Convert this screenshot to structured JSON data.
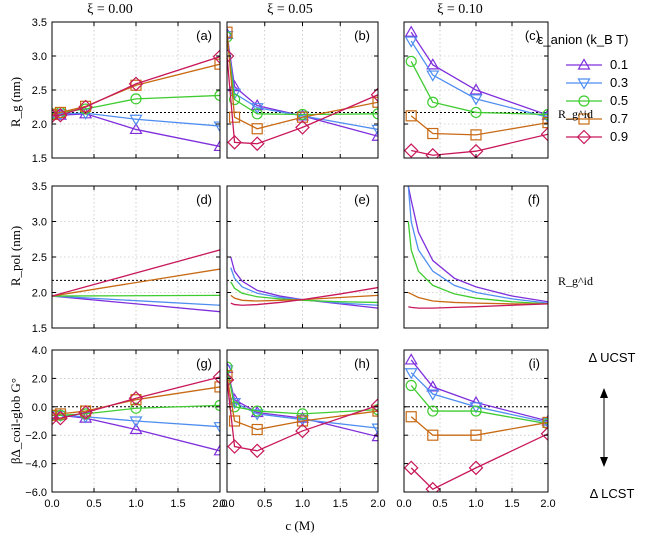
{
  "figure": {
    "xi_titles": [
      "ξ = 0.00",
      "ξ = 0.05",
      "ξ = 0.10"
    ],
    "xlabel": "c (M)",
    "row_labels": [
      "R_g (nm)",
      "R_pol (nm)",
      "βΔ_coil-glob G°"
    ],
    "panel_labels": [
      "(a)",
      "(b)",
      "(c)",
      "(d)",
      "(e)",
      "(f)",
      "(g)",
      "(h)",
      "(i)"
    ],
    "legend_title": "ε_anion (k_B T)",
    "legend_entries": [
      "0.1",
      "0.3",
      "0.5",
      "0.7",
      "0.9"
    ],
    "ref_label_top": "R_g^id",
    "ref_label_mid": "R_g^id",
    "arrow_top": "Δ UCST",
    "arrow_bottom": "Δ LCST",
    "x_ticks": [
      "0.0",
      "0.5",
      "1.0",
      "1.5",
      "2.0"
    ],
    "y_ticks_rows": [
      [
        "1.5",
        "2.0",
        "2.5",
        "3.0",
        "3.5"
      ],
      [
        "1.5",
        "2.0",
        "2.5",
        "3.0",
        "3.5"
      ],
      [
        "−6.0",
        "−4.0",
        "−2.0",
        "0.0",
        "2.0",
        "4.0"
      ]
    ],
    "series_colors": [
      "#7f2fdc",
      "#4f8ef0",
      "#3fcc30",
      "#c86a14",
      "#c8185a"
    ],
    "marker_shapes": [
      "triangle-up",
      "triangle-down",
      "circle",
      "square",
      "diamond"
    ]
  },
  "chart_data": [
    {
      "panel": "a",
      "type": "line",
      "xlim": [
        0,
        2
      ],
      "ylim": [
        1.5,
        3.5
      ],
      "ref_y": 2.17,
      "x": [
        0.0,
        0.1,
        0.4,
        1.0,
        2.0
      ],
      "series": [
        {
          "name": "0.1",
          "values": [
            2.15,
            2.13,
            2.15,
            1.92,
            1.67
          ]
        },
        {
          "name": "0.3",
          "values": [
            2.15,
            2.15,
            2.16,
            2.07,
            1.97
          ]
        },
        {
          "name": "0.5",
          "values": [
            2.15,
            2.17,
            2.22,
            2.37,
            2.42
          ]
        },
        {
          "name": "0.7",
          "values": [
            2.14,
            2.17,
            2.26,
            2.57,
            2.88
          ]
        },
        {
          "name": "0.9",
          "values": [
            2.12,
            2.13,
            2.25,
            2.59,
            2.99
          ]
        }
      ]
    },
    {
      "panel": "b",
      "type": "line",
      "xlim": [
        0,
        2
      ],
      "ylim": [
        1.5,
        3.5
      ],
      "ref_y": 2.17,
      "x": [
        0.0,
        0.1,
        0.4,
        1.0,
        2.0
      ],
      "series": [
        {
          "name": "0.1",
          "values": [
            3.32,
            2.55,
            2.27,
            2.12,
            1.82
          ]
        },
        {
          "name": "0.3",
          "values": [
            3.3,
            2.45,
            2.24,
            2.12,
            1.92
          ]
        },
        {
          "name": "0.5",
          "values": [
            3.28,
            2.36,
            2.15,
            2.14,
            2.15
          ]
        },
        {
          "name": "0.7",
          "values": [
            3.35,
            2.1,
            1.93,
            2.1,
            2.32
          ]
        },
        {
          "name": "0.9",
          "values": [
            3.0,
            1.73,
            1.71,
            1.95,
            2.43
          ]
        }
      ]
    },
    {
      "panel": "c",
      "type": "line",
      "xlim": [
        0,
        2
      ],
      "ylim": [
        1.5,
        3.5
      ],
      "ref_y": 2.17,
      "x": [
        0.1,
        0.4,
        1.0,
        2.0
      ],
      "series": [
        {
          "name": "0.1",
          "values": [
            3.35,
            2.87,
            2.5,
            2.13
          ]
        },
        {
          "name": "0.3",
          "values": [
            3.22,
            2.72,
            2.37,
            2.1
          ]
        },
        {
          "name": "0.5",
          "values": [
            2.92,
            2.32,
            2.17,
            2.14
          ]
        },
        {
          "name": "0.7",
          "values": [
            2.12,
            1.86,
            1.84,
            2.02
          ]
        },
        {
          "name": "0.9",
          "values": [
            1.61,
            1.54,
            1.6,
            1.85
          ]
        }
      ]
    },
    {
      "panel": "d",
      "type": "line",
      "xlim": [
        0,
        2
      ],
      "ylim": [
        1.5,
        3.5
      ],
      "ref_y": 2.17,
      "x": [
        0.0,
        2.0
      ],
      "series": [
        {
          "name": "0.1",
          "values": [
            1.95,
            1.73
          ]
        },
        {
          "name": "0.3",
          "values": [
            1.95,
            1.82
          ]
        },
        {
          "name": "0.5",
          "values": [
            1.95,
            1.96
          ]
        },
        {
          "name": "0.7",
          "values": [
            1.95,
            2.33
          ]
        },
        {
          "name": "0.9",
          "values": [
            1.95,
            2.6
          ]
        }
      ]
    },
    {
      "panel": "e",
      "type": "line",
      "xlim": [
        0,
        2
      ],
      "ylim": [
        1.5,
        3.5
      ],
      "ref_y": 2.17,
      "x": [
        0.05,
        0.1,
        0.2,
        0.4,
        0.7,
        1.0,
        1.5,
        2.0
      ],
      "series": [
        {
          "name": "0.1",
          "values": [
            2.5,
            2.3,
            2.16,
            2.03,
            1.95,
            1.9,
            1.84,
            1.78
          ]
        },
        {
          "name": "0.3",
          "values": [
            2.35,
            2.2,
            2.08,
            1.99,
            1.93,
            1.9,
            1.85,
            1.82
          ]
        },
        {
          "name": "0.5",
          "values": [
            2.15,
            2.06,
            1.99,
            1.94,
            1.91,
            1.89,
            1.87,
            1.86
          ]
        },
        {
          "name": "0.7",
          "values": [
            1.96,
            1.92,
            1.89,
            1.88,
            1.89,
            1.9,
            1.93,
            1.96
          ]
        },
        {
          "name": "0.9",
          "values": [
            1.85,
            1.83,
            1.82,
            1.83,
            1.86,
            1.9,
            1.98,
            2.07
          ]
        }
      ]
    },
    {
      "panel": "f",
      "type": "line",
      "xlim": [
        0,
        2
      ],
      "ylim": [
        1.5,
        3.5
      ],
      "ref_y": 2.17,
      "x": [
        0.06,
        0.1,
        0.2,
        0.4,
        0.7,
        1.0,
        1.5,
        2.0
      ],
      "series": [
        {
          "name": "0.1",
          "values": [
            3.5,
            3.3,
            2.85,
            2.45,
            2.2,
            2.08,
            1.95,
            1.87
          ]
        },
        {
          "name": "0.3",
          "values": [
            3.5,
            3.0,
            2.6,
            2.3,
            2.1,
            2.0,
            1.91,
            1.85
          ]
        },
        {
          "name": "0.5",
          "values": [
            3.0,
            2.6,
            2.3,
            2.1,
            1.98,
            1.92,
            1.87,
            1.84
          ]
        },
        {
          "name": "0.7",
          "values": [
            2.0,
            1.98,
            1.93,
            1.88,
            1.86,
            1.85,
            1.84,
            1.84
          ]
        },
        {
          "name": "0.9",
          "values": [
            1.8,
            1.79,
            1.78,
            1.78,
            1.79,
            1.8,
            1.82,
            1.84
          ]
        }
      ]
    },
    {
      "panel": "g",
      "type": "line",
      "xlim": [
        0,
        2
      ],
      "ylim": [
        -6,
        4
      ],
      "ref_y": 0,
      "x": [
        0.0,
        0.1,
        0.4,
        1.0,
        2.0
      ],
      "series": [
        {
          "name": "0.1",
          "values": [
            -0.6,
            -0.6,
            -0.8,
            -1.6,
            -3.1
          ]
        },
        {
          "name": "0.3",
          "values": [
            -0.6,
            -0.6,
            -0.7,
            -1.0,
            -1.4
          ]
        },
        {
          "name": "0.5",
          "values": [
            -0.6,
            -0.6,
            -0.5,
            -0.1,
            0.1
          ]
        },
        {
          "name": "0.7",
          "values": [
            -0.6,
            -0.5,
            -0.3,
            0.5,
            1.4
          ]
        },
        {
          "name": "0.9",
          "values": [
            -0.8,
            -0.8,
            -0.4,
            0.6,
            2.1
          ]
        }
      ]
    },
    {
      "panel": "h",
      "type": "line",
      "xlim": [
        0,
        2
      ],
      "ylim": [
        -6,
        4
      ],
      "ref_y": 0,
      "x": [
        0.0,
        0.1,
        0.4,
        1.0,
        2.0
      ],
      "series": [
        {
          "name": "0.1",
          "values": [
            2.7,
            0.5,
            -0.4,
            -0.8,
            -2.1
          ]
        },
        {
          "name": "0.3",
          "values": [
            2.6,
            0.3,
            -0.5,
            -0.9,
            -1.5
          ]
        },
        {
          "name": "0.5",
          "values": [
            2.8,
            0.0,
            -0.3,
            -0.5,
            -0.2
          ]
        },
        {
          "name": "0.7",
          "values": [
            2.2,
            -1.0,
            -1.6,
            -1.0,
            -0.3
          ]
        },
        {
          "name": "0.9",
          "values": [
            1.9,
            -2.8,
            -3.1,
            -1.7,
            0.1
          ]
        }
      ]
    },
    {
      "panel": "i",
      "type": "line",
      "xlim": [
        0,
        2
      ],
      "ylim": [
        -6,
        4
      ],
      "ref_y": 0,
      "x": [
        0.1,
        0.4,
        1.0,
        2.0
      ],
      "series": [
        {
          "name": "0.1",
          "values": [
            3.3,
            1.4,
            0.3,
            -1.0
          ]
        },
        {
          "name": "0.3",
          "values": [
            2.4,
            0.9,
            0.0,
            -1.1
          ]
        },
        {
          "name": "0.5",
          "values": [
            1.5,
            -0.3,
            -0.3,
            -1.2
          ]
        },
        {
          "name": "0.7",
          "values": [
            -0.7,
            -2.0,
            -2.0,
            -1.1
          ]
        },
        {
          "name": "0.9",
          "values": [
            -4.3,
            -5.8,
            -4.3,
            -1.9
          ]
        }
      ]
    }
  ]
}
